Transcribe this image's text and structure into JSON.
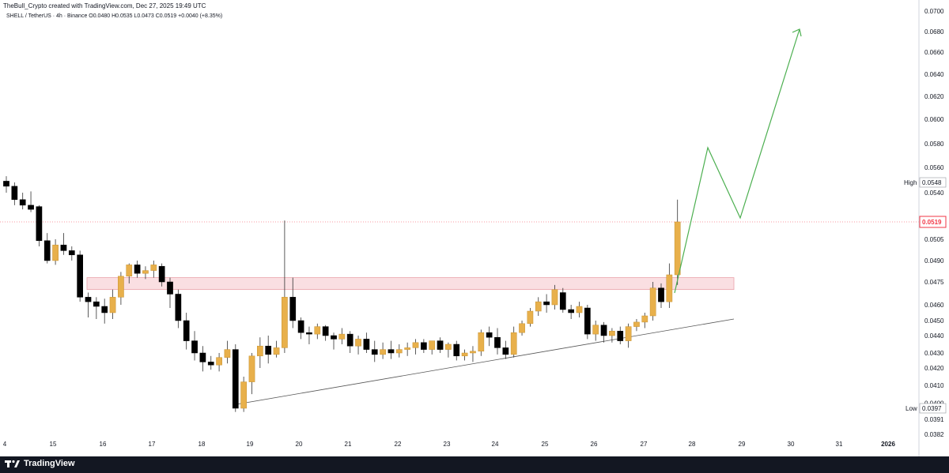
{
  "header": {
    "attribution": "TheBull_Crypto created with TradingView.com, Dec 27, 2025 19:49 UTC",
    "symbol_line": "SHELL / TetherUS · 4h · Binance  O0.0480  H0.0535  L0.0473  C0.0519  +0.0040 (+8.35%)"
  },
  "footer": {
    "brand": "TradingView",
    "logo_icon": "tradingview-logo-icon"
  },
  "colors": {
    "bull": "#E8B04B",
    "bear": "#000000",
    "zone": "#F7C9CE",
    "projection": "#4CAF50",
    "last_price": "#F23645",
    "trendline": "#555555"
  },
  "chart_data": {
    "type": "candlestick",
    "symbol": "SHELL / TetherUS",
    "interval": "4h",
    "exchange": "Binance",
    "ylim": [
      0.038,
      0.07
    ],
    "price_ticks": [
      "0.0700",
      "0.0680",
      "0.0660",
      "0.0640",
      "0.0620",
      "0.0600",
      "0.0580",
      "0.0560",
      "0.0540",
      "0.0505",
      "0.0490",
      "0.0475",
      "0.0460",
      "0.0450",
      "0.0440",
      "0.0430",
      "0.0420",
      "0.0410",
      "0.0400",
      "0.0391",
      "0.0382"
    ],
    "x_ticks": [
      "4",
      "15",
      "16",
      "17",
      "18",
      "19",
      "20",
      "21",
      "22",
      "23",
      "24",
      "25",
      "26",
      "27",
      "28",
      "29",
      "30",
      "31",
      "2026"
    ],
    "x_tick_index": [
      0,
      6,
      12,
      18,
      24,
      30,
      36,
      42,
      48,
      54,
      60,
      66,
      72,
      78,
      84,
      90,
      96,
      102,
      108
    ],
    "high_label": {
      "text": "High",
      "value": "0.0548"
    },
    "low_label": {
      "text": "Low",
      "value": "0.0397"
    },
    "last_price": "0.0519",
    "candles": [
      [
        0.0549,
        0.0553,
        0.054,
        0.0545
      ],
      [
        0.0545,
        0.0548,
        0.0531,
        0.0535
      ],
      [
        0.0535,
        0.054,
        0.0528,
        0.0531
      ],
      [
        0.0531,
        0.0541,
        0.0526,
        0.0528
      ],
      [
        0.053,
        0.0531,
        0.05,
        0.0504
      ],
      [
        0.0504,
        0.051,
        0.0488,
        0.049
      ],
      [
        0.049,
        0.0505,
        0.0487,
        0.0501
      ],
      [
        0.0501,
        0.051,
        0.0494,
        0.0497
      ],
      [
        0.0497,
        0.05,
        0.049,
        0.0494
      ],
      [
        0.0494,
        0.0497,
        0.0462,
        0.0465
      ],
      [
        0.0465,
        0.0468,
        0.0452,
        0.0462
      ],
      [
        0.0462,
        0.0465,
        0.0451,
        0.0459
      ],
      [
        0.0459,
        0.0464,
        0.0448,
        0.0455
      ],
      [
        0.0455,
        0.047,
        0.0451,
        0.0465
      ],
      [
        0.0465,
        0.0482,
        0.046,
        0.0479
      ],
      [
        0.0479,
        0.0488,
        0.0474,
        0.0487
      ],
      [
        0.0487,
        0.049,
        0.0478,
        0.0481
      ],
      [
        0.0481,
        0.0486,
        0.0477,
        0.0483
      ],
      [
        0.0483,
        0.049,
        0.0478,
        0.0487
      ],
      [
        0.0486,
        0.0488,
        0.0472,
        0.0475
      ],
      [
        0.0475,
        0.0478,
        0.0458,
        0.0467
      ],
      [
        0.0467,
        0.047,
        0.0445,
        0.045
      ],
      [
        0.045,
        0.0455,
        0.0432,
        0.0437
      ],
      [
        0.0437,
        0.0443,
        0.0425,
        0.043
      ],
      [
        0.043,
        0.0434,
        0.0418,
        0.0424
      ],
      [
        0.0424,
        0.0428,
        0.0419,
        0.0422
      ],
      [
        0.0422,
        0.043,
        0.0418,
        0.0427
      ],
      [
        0.0427,
        0.0437,
        0.0423,
        0.0432
      ],
      [
        0.0432,
        0.0435,
        0.0395,
        0.0397
      ],
      [
        0.0397,
        0.0415,
        0.0395,
        0.0412
      ],
      [
        0.0412,
        0.043,
        0.0405,
        0.0428
      ],
      [
        0.0428,
        0.0439,
        0.042,
        0.0434
      ],
      [
        0.0434,
        0.044,
        0.0423,
        0.0429
      ],
      [
        0.0429,
        0.0437,
        0.0427,
        0.0433
      ],
      [
        0.0433,
        0.052,
        0.043,
        0.0465
      ],
      [
        0.0465,
        0.0478,
        0.0445,
        0.045
      ],
      [
        0.045,
        0.0452,
        0.0438,
        0.0442
      ],
      [
        0.0442,
        0.0446,
        0.0435,
        0.0441
      ],
      [
        0.0441,
        0.0448,
        0.0438,
        0.0446
      ],
      [
        0.0446,
        0.0447,
        0.0437,
        0.044
      ],
      [
        0.044,
        0.0442,
        0.0432,
        0.0438
      ],
      [
        0.0438,
        0.0445,
        0.0435,
        0.0441
      ],
      [
        0.0441,
        0.0443,
        0.043,
        0.0434
      ],
      [
        0.0434,
        0.044,
        0.0429,
        0.0438
      ],
      [
        0.0438,
        0.0442,
        0.043,
        0.0432
      ],
      [
        0.0432,
        0.0437,
        0.0424,
        0.0429
      ],
      [
        0.0429,
        0.0436,
        0.0426,
        0.0432
      ],
      [
        0.0432,
        0.0437,
        0.0426,
        0.043
      ],
      [
        0.043,
        0.0435,
        0.0427,
        0.0432
      ],
      [
        0.0432,
        0.0436,
        0.0428,
        0.0433
      ],
      [
        0.0433,
        0.0438,
        0.0429,
        0.0436
      ],
      [
        0.0436,
        0.0438,
        0.043,
        0.0432
      ],
      [
        0.0432,
        0.0437,
        0.0429,
        0.0437
      ],
      [
        0.0437,
        0.0439,
        0.043,
        0.0432
      ],
      [
        0.0432,
        0.0436,
        0.0427,
        0.0435
      ],
      [
        0.0435,
        0.0437,
        0.0425,
        0.0428
      ],
      [
        0.0428,
        0.0432,
        0.0425,
        0.043
      ],
      [
        0.043,
        0.0434,
        0.0424,
        0.0431
      ],
      [
        0.0431,
        0.0444,
        0.0428,
        0.0442
      ],
      [
        0.0442,
        0.0446,
        0.0434,
        0.0439
      ],
      [
        0.0439,
        0.0445,
        0.0429,
        0.0433
      ],
      [
        0.0433,
        0.0437,
        0.0426,
        0.0429
      ],
      [
        0.0429,
        0.0446,
        0.0427,
        0.0442
      ],
      [
        0.0442,
        0.045,
        0.044,
        0.0448
      ],
      [
        0.0448,
        0.0458,
        0.0446,
        0.0456
      ],
      [
        0.0456,
        0.0465,
        0.0453,
        0.0462
      ],
      [
        0.0462,
        0.0467,
        0.0455,
        0.046
      ],
      [
        0.046,
        0.0473,
        0.0457,
        0.047
      ],
      [
        0.0468,
        0.0471,
        0.0455,
        0.0457
      ],
      [
        0.0457,
        0.046,
        0.0451,
        0.0455
      ],
      [
        0.0455,
        0.0462,
        0.0452,
        0.0459
      ],
      [
        0.0458,
        0.046,
        0.0438,
        0.0441
      ],
      [
        0.0441,
        0.045,
        0.0437,
        0.0447
      ],
      [
        0.0447,
        0.0449,
        0.0436,
        0.044
      ],
      [
        0.044,
        0.0445,
        0.0436,
        0.0443
      ],
      [
        0.0443,
        0.0446,
        0.0435,
        0.0437
      ],
      [
        0.0437,
        0.0448,
        0.0433,
        0.0446
      ],
      [
        0.0446,
        0.0451,
        0.0443,
        0.0449
      ],
      [
        0.0449,
        0.0455,
        0.0445,
        0.0453
      ],
      [
        0.0453,
        0.0475,
        0.045,
        0.0471
      ],
      [
        0.0471,
        0.0474,
        0.0458,
        0.0462
      ],
      [
        0.0462,
        0.0488,
        0.0458,
        0.048
      ],
      [
        0.048,
        0.0535,
        0.0473,
        0.0519
      ]
    ],
    "resistance_zone": {
      "from": 0.047,
      "to": 0.0478,
      "start_index": 17,
      "end_index": 148
    },
    "trendline": [
      [
        49,
        0.0399
      ],
      [
        148,
        0.0451
      ]
    ],
    "projection_path": [
      [
        143,
        0.0472
      ],
      [
        150,
        0.0576
      ],
      [
        157,
        0.052
      ],
      [
        165,
        0.0683
      ]
    ],
    "highest_wick": {
      "index": 57,
      "value": 0.052
    }
  }
}
